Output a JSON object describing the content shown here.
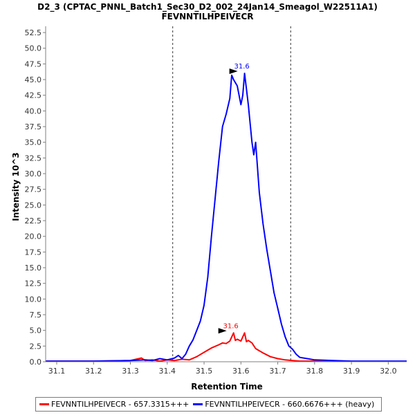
{
  "chart_data": {
    "type": "line",
    "title": "D2_3 (CPTAC_PNNL_Batch1_Sec30_D2_002_24Jan14_Smeagol_W22511A1)",
    "subtitle": "FEVNNTILHPEIVECR",
    "xlabel": "Retention Time",
    "ylabel": "Intensity 10^3",
    "xlim": [
      31.07,
      32.05
    ],
    "ylim": [
      0,
      53.5
    ],
    "x_ticks": [
      "31.1",
      "31.2",
      "31.3",
      "31.4",
      "31.5",
      "31.6",
      "31.7",
      "31.8",
      "31.9",
      "32.0"
    ],
    "y_ticks": [
      "0.0",
      "2.5",
      "5.0",
      "7.5",
      "10.0",
      "12.5",
      "15.0",
      "17.5",
      "20.0",
      "22.5",
      "25.0",
      "27.5",
      "30.0",
      "32.5",
      "35.0",
      "37.5",
      "40.0",
      "42.5",
      "45.0",
      "47.5",
      "50.0",
      "52.5"
    ],
    "vlines": [
      31.415,
      31.735
    ],
    "series": [
      {
        "name": "FEVNNTILHPEIVECR - 657.3315+++",
        "color": "#ff0000",
        "x": [
          31.07,
          31.2,
          31.3,
          31.33,
          31.34,
          31.36,
          31.38,
          31.4,
          31.42,
          31.44,
          31.46,
          31.48,
          31.5,
          31.52,
          31.54,
          31.55,
          31.56,
          31.57,
          31.58,
          31.585,
          31.59,
          31.6,
          31.61,
          31.615,
          31.62,
          31.63,
          31.64,
          31.66,
          31.68,
          31.7,
          31.72,
          31.74,
          31.76,
          31.8,
          31.9,
          32.05
        ],
        "y": [
          0.1,
          0.1,
          0.2,
          0.6,
          0.2,
          0.3,
          0.1,
          0.3,
          0.2,
          0.4,
          0.3,
          0.8,
          1.5,
          2.2,
          2.7,
          3.0,
          2.9,
          3.3,
          4.6,
          3.4,
          3.6,
          3.3,
          4.6,
          3.2,
          3.4,
          3.0,
          2.1,
          1.4,
          0.8,
          0.5,
          0.3,
          0.2,
          0.1,
          0.1,
          0.05,
          0.05
        ],
        "peak_label": "31.6"
      },
      {
        "name": "FEVNNTILHPEIVECR - 660.6676+++ (heavy)",
        "color": "#0000ff",
        "x": [
          31.07,
          31.2,
          31.3,
          31.34,
          31.36,
          31.38,
          31.4,
          31.42,
          31.43,
          31.44,
          31.45,
          31.46,
          31.47,
          31.48,
          31.49,
          31.5,
          31.51,
          31.52,
          31.53,
          31.54,
          31.55,
          31.56,
          31.57,
          31.575,
          31.58,
          31.59,
          31.6,
          31.605,
          31.61,
          31.62,
          31.63,
          31.635,
          31.64,
          31.65,
          31.66,
          31.67,
          31.68,
          31.69,
          31.7,
          31.71,
          31.72,
          31.73,
          31.74,
          31.75,
          31.76,
          31.78,
          31.8,
          31.85,
          31.9,
          32.05
        ],
        "y": [
          0.1,
          0.1,
          0.2,
          0.3,
          0.2,
          0.5,
          0.3,
          0.6,
          1.0,
          0.5,
          1.2,
          2.5,
          3.5,
          5.0,
          6.5,
          9.0,
          13.5,
          20.0,
          26.0,
          32.0,
          37.5,
          39.5,
          42.0,
          45.7,
          45.0,
          44.0,
          41.0,
          42.5,
          46.0,
          41.0,
          35.0,
          33.0,
          35.0,
          27.0,
          22.0,
          18.0,
          14.5,
          11.0,
          8.5,
          6.0,
          4.0,
          2.5,
          2.0,
          1.2,
          0.7,
          0.5,
          0.3,
          0.2,
          0.1,
          0.1
        ],
        "peak_label": "31.6"
      }
    ],
    "legend": [
      {
        "label": "FEVNNTILHPEIVECR - 657.3315+++",
        "color": "#ff0000"
      },
      {
        "label": "FEVNNTILHPEIVECR - 660.6676+++ (heavy)",
        "color": "#0000ff"
      }
    ]
  }
}
